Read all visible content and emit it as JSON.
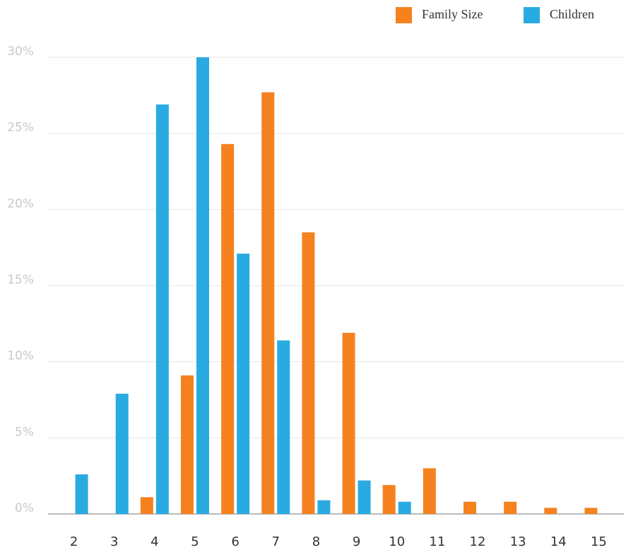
{
  "chart_data": {
    "type": "bar",
    "categories": [
      "2",
      "3",
      "4",
      "5",
      "6",
      "7",
      "8",
      "9",
      "10",
      "11",
      "12",
      "13",
      "14",
      "15"
    ],
    "series": [
      {
        "name": "Family Size",
        "color": "#f5821f",
        "values": [
          0,
          0,
          1.1,
          9.1,
          24.3,
          27.7,
          18.5,
          11.9,
          1.9,
          3.0,
          0.8,
          0.8,
          0.4,
          0.4
        ]
      },
      {
        "name": "Children",
        "color": "#29abe2",
        "values": [
          2.6,
          7.9,
          26.9,
          30,
          17.1,
          11.4,
          0.9,
          2.2,
          0.8,
          0,
          0,
          0,
          0,
          0
        ]
      }
    ],
    "ylim": [
      0,
      30
    ],
    "yticks": [
      {
        "value": 0,
        "label": "0%"
      },
      {
        "value": 5,
        "label": "5%"
      },
      {
        "value": 10,
        "label": "10%"
      },
      {
        "value": 15,
        "label": "15%"
      },
      {
        "value": 20,
        "label": "20%"
      },
      {
        "value": 25,
        "label": "25%"
      },
      {
        "value": 30,
        "label": "30%"
      }
    ],
    "grid": true,
    "legend": "top-right"
  }
}
